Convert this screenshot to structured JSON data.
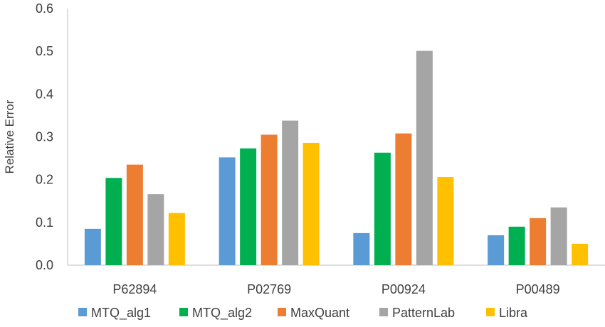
{
  "chart_data": {
    "type": "bar",
    "title": "",
    "xlabel": "",
    "ylabel": "Relative Error",
    "ylim": [
      0,
      0.6
    ],
    "yticks": [
      "0.0",
      "0.1",
      "0.2",
      "0.3",
      "0.4",
      "0.5",
      "0.6"
    ],
    "categories": [
      "P62894",
      "P02769",
      "P00924",
      "P00489"
    ],
    "series": [
      {
        "name": "MTQ_alg1",
        "color": "#5B9BD5",
        "values": [
          0.085,
          0.252,
          0.075,
          0.07
        ]
      },
      {
        "name": "MTQ_alg2",
        "color": "#00B050",
        "values": [
          0.204,
          0.273,
          0.263,
          0.09
        ]
      },
      {
        "name": "MaxQuant",
        "color": "#ED7D31",
        "values": [
          0.235,
          0.305,
          0.308,
          0.11
        ]
      },
      {
        "name": "PatternLab",
        "color": "#A5A5A5",
        "values": [
          0.166,
          0.338,
          0.501,
          0.135
        ]
      },
      {
        "name": "Libra",
        "color": "#FFC000",
        "values": [
          0.122,
          0.286,
          0.206,
          0.05
        ]
      }
    ],
    "grid": false,
    "legend_position": "bottom"
  }
}
